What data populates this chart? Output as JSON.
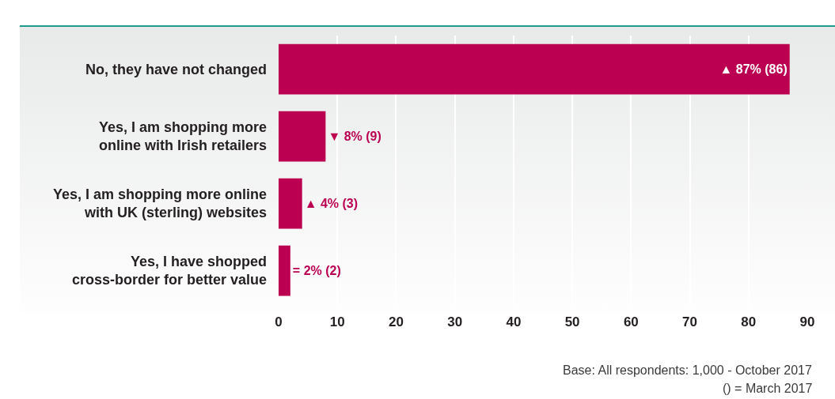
{
  "chart_data": {
    "type": "bar",
    "orientation": "horizontal",
    "categories": [
      "No, they have not changed",
      "Yes, I am shopping more\nonline with Irish retailers",
      "Yes, I am shopping more online\nwith UK (sterling) websites",
      "Yes, I have shopped\ncross-border for better value"
    ],
    "values": [
      87,
      8,
      4,
      2
    ],
    "color": "#bb0051",
    "value_labels": [
      "▲ 87% (86)",
      "▼ 8% (9)",
      "▲ 4% (3)",
      "= 2% (2)"
    ],
    "xlim": [
      0,
      90
    ],
    "xticks": [
      0,
      10,
      20,
      30,
      40,
      50,
      60,
      70,
      80,
      90
    ],
    "grid": "x",
    "annotations": [
      "Base: All respondents: 1,000 - October 2017",
      "() = March 2017"
    ]
  }
}
